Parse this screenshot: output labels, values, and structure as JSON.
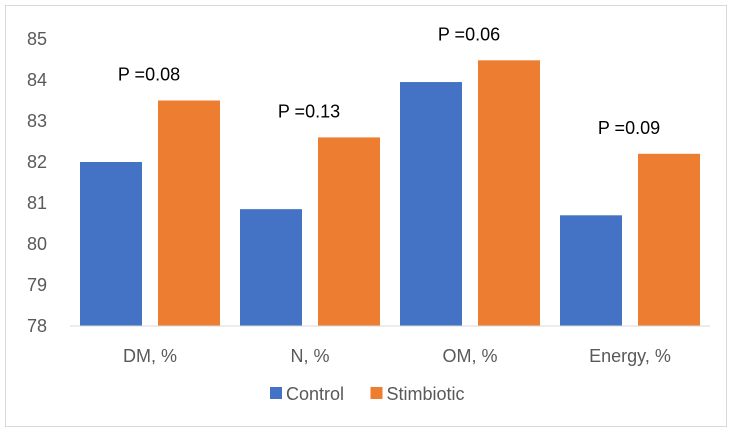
{
  "chart_data": {
    "type": "bar",
    "categories": [
      "DM, %",
      "N, %",
      "OM, %",
      "Energy, %"
    ],
    "series": [
      {
        "name": "Control",
        "color": "#4472c4",
        "values": [
          82.0,
          80.85,
          83.95,
          80.7
        ]
      },
      {
        "name": "Stimbiotic",
        "color": "#ed7d31",
        "values": [
          83.5,
          82.6,
          84.48,
          82.2
        ]
      }
    ],
    "annotations": [
      "P =0.08",
      "P =0.13",
      "P =0.06",
      "P =0.09"
    ],
    "ylim": [
      78,
      85
    ],
    "yticks": [
      78,
      79,
      80,
      81,
      82,
      83,
      84,
      85
    ],
    "grid": false,
    "legend_position": "bottom",
    "title": "",
    "xlabel": "",
    "ylabel": ""
  }
}
